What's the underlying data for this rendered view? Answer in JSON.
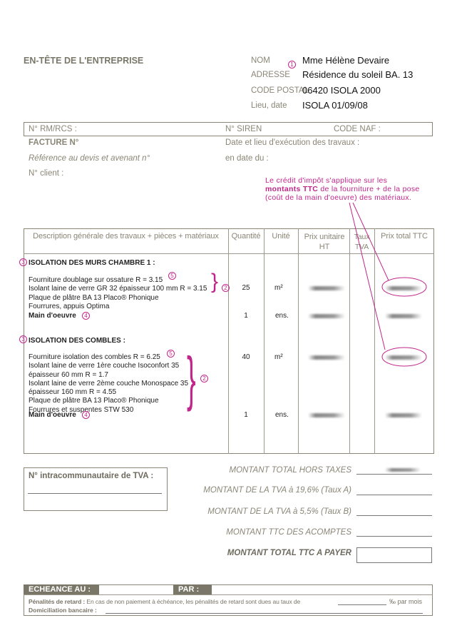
{
  "header": {
    "company_title": "EN-TÊTE DE L'ENTREPRISE",
    "client": [
      {
        "label": "NOM",
        "value": "Mme Hélène Devaire"
      },
      {
        "label": "ADRESSE",
        "value": "Résidence du soleil BA. 13"
      },
      {
        "label": "CODE POSTAL",
        "value": "06420 ISOLA 2000"
      },
      {
        "label": "Lieu, date",
        "value": "ISOLA 01/09/08"
      }
    ]
  },
  "registry": {
    "rm_rcs": "N° RM/RCS :",
    "siren": "N° SIREN",
    "naf": "CODE NAF :"
  },
  "invoice": {
    "facture": "FACTURE N°",
    "reference": "Référence au devis et avenant n°",
    "client_no": "N° client :",
    "execution": "Date et lieu d'exécution des travaux :",
    "en_date": "en date du :"
  },
  "note": {
    "line1": "Le crédit d'impôt s'applique sur les",
    "bold": "montants TTC",
    "line2_rest": " de la fourniture + de la pose",
    "line3": "(coût de la main d'oeuvre) des matériaux."
  },
  "table": {
    "headers": [
      "Description générale des travaux + pièces + matériaux",
      "Quantité",
      "Unité",
      "Prix unitaire HT",
      "Taux TVA",
      "Prix total TTC"
    ],
    "sections": [
      {
        "title": "ISOLATION DES MURS CHAMBRE 1 :",
        "lines": [
          "Fourniture doublage sur ossature R = 3.15",
          "Isolant laine de verre GR 32 épaisseur 100 mm R = 3.15",
          "Plaque de plâtre BA 13 Placo® Phonique",
          "Fourrures, appuis Optima"
        ],
        "qty": "25",
        "unit": "m²",
        "labour": "Main d'oeuvre",
        "labour_qty": "1",
        "labour_unit": "ens."
      },
      {
        "title": "ISOLATION DES COMBLES :",
        "lines": [
          "Fourniture isolation des combles R = 6.25",
          "Isolant laine de verre 1ère couche Isoconfort 35",
          "épaisseur 60 mm R = 1.7",
          "Isolant laine de verre 2ème couche Monospace 35",
          "épaisseur 160 mm R = 4.55",
          "Plaque de plâtre BA 13 Placo® Phonique",
          "Fourrures et suspentes STW 530"
        ],
        "qty": "40",
        "unit": "m²",
        "labour": "Main d'oeuvre",
        "labour_qty": "1",
        "labour_unit": "ens."
      }
    ]
  },
  "markers": {
    "one": "1",
    "two": "2",
    "three": "3",
    "four": "4",
    "five": "5"
  },
  "totals": {
    "tva_intra": "N° intracommunautaire de TVA :",
    "ht": "MONTANT TOTAL HORS TAXES",
    "tva_a": "MONTANT DE LA TVA à 19,6% (Taux A)",
    "tva_b": "MONTANT DE LA TVA à 5,5% (Taux B)",
    "acomptes": "MONTANT TTC DES ACOMPTES",
    "total": "MONTANT TOTAL TTC A PAYER"
  },
  "footer": {
    "echeance": "ECHEANCE AU :",
    "par": "PAR :",
    "penalites_label": "Pénalités de retard :",
    "penalites_text": " En cas de non paiement à échéance, les pénalités de retard sont dues au taux de",
    "per_month": "‰ par mois",
    "domiciliation": "Domiciliation bancaire :"
  },
  "colors": {
    "annotation": "#c0268a",
    "form_gray": "#8a8676",
    "bar_dark": "#7a7668"
  }
}
